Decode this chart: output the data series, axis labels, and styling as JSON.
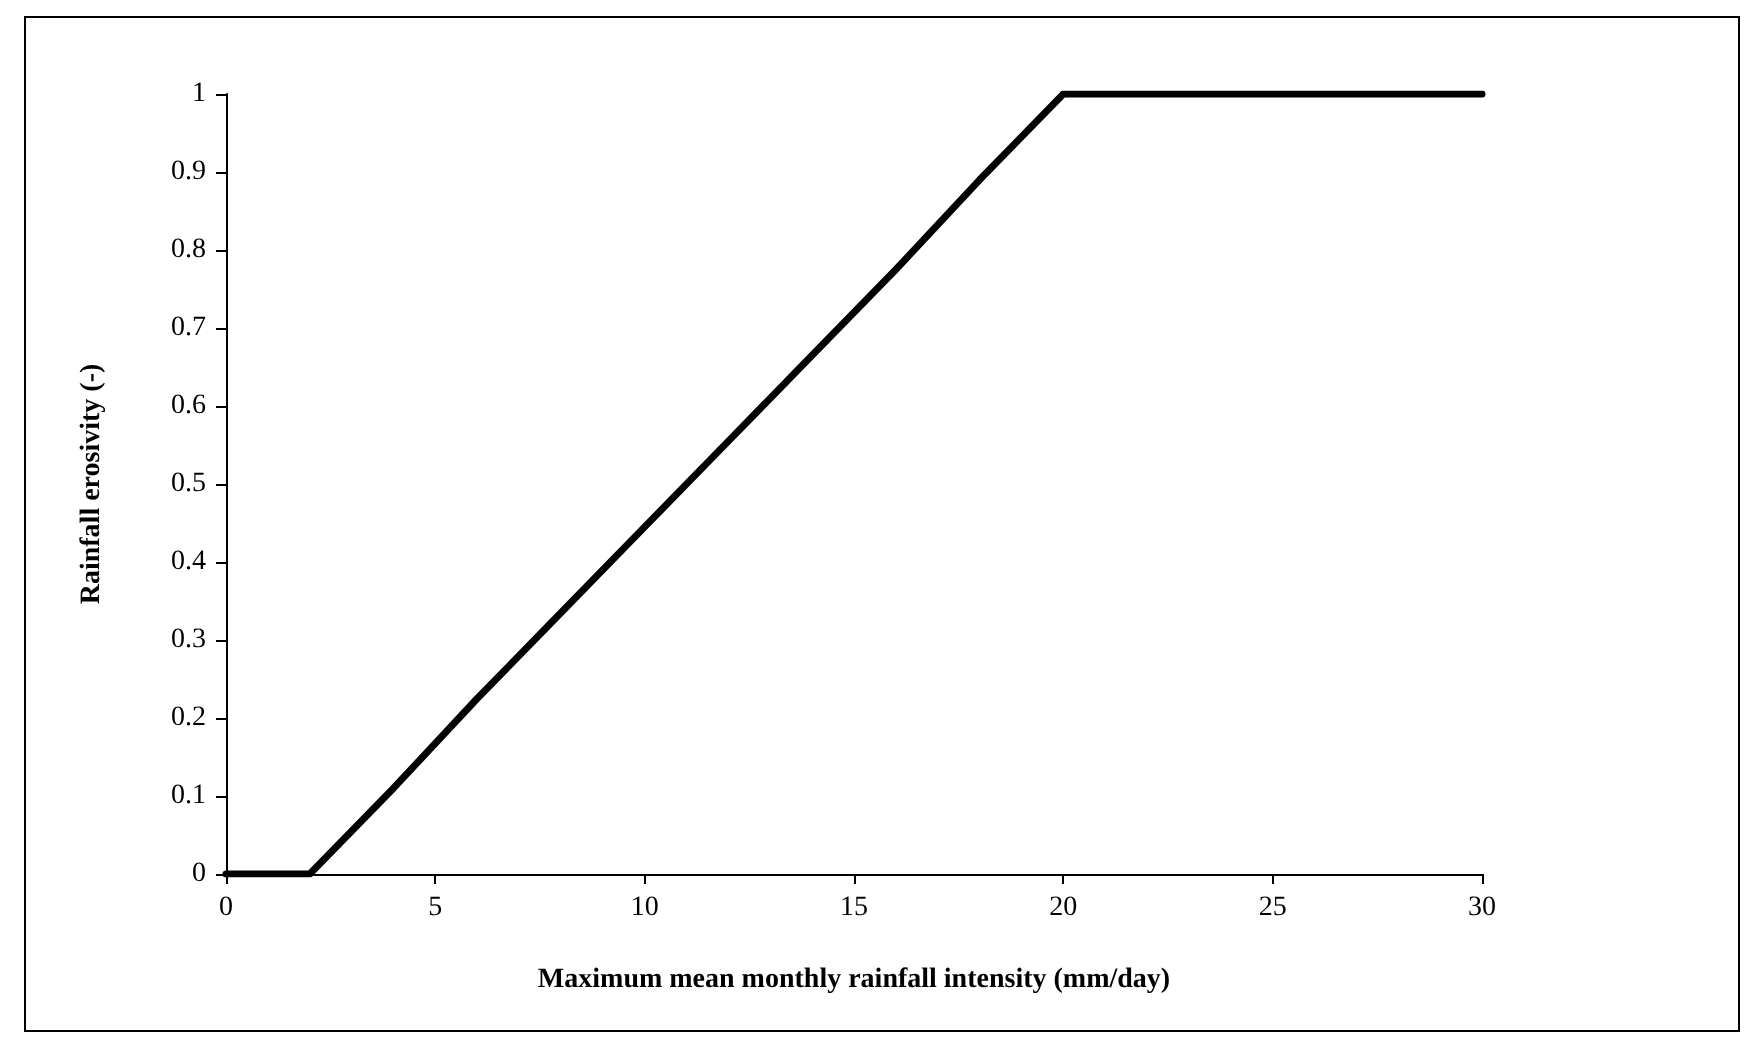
{
  "chart_data": {
    "type": "line",
    "xlabel": "Maximum mean monthly rainfall intensity (mm/day)",
    "ylabel": "Rainfall erosivity (-)",
    "x": [
      0,
      2,
      4,
      6,
      8,
      10,
      12,
      14,
      16,
      18,
      20,
      30
    ],
    "series": [
      {
        "color": "#000000",
        "values": [
          0,
          0,
          0.11,
          0.225,
          0.335,
          0.445,
          0.555,
          0.665,
          0.775,
          0.89,
          1,
          1
        ]
      }
    ],
    "xlim": [
      0,
      30
    ],
    "xticks": [
      0,
      5,
      10,
      15,
      20,
      25,
      30
    ],
    "ylim": [
      0,
      1
    ],
    "yticks": [
      0,
      0.1,
      0.2,
      0.3,
      0.4,
      0.5,
      0.6,
      0.7,
      0.8,
      0.9,
      1
    ],
    "grid": false,
    "marker": "none",
    "line_style": "solid"
  }
}
